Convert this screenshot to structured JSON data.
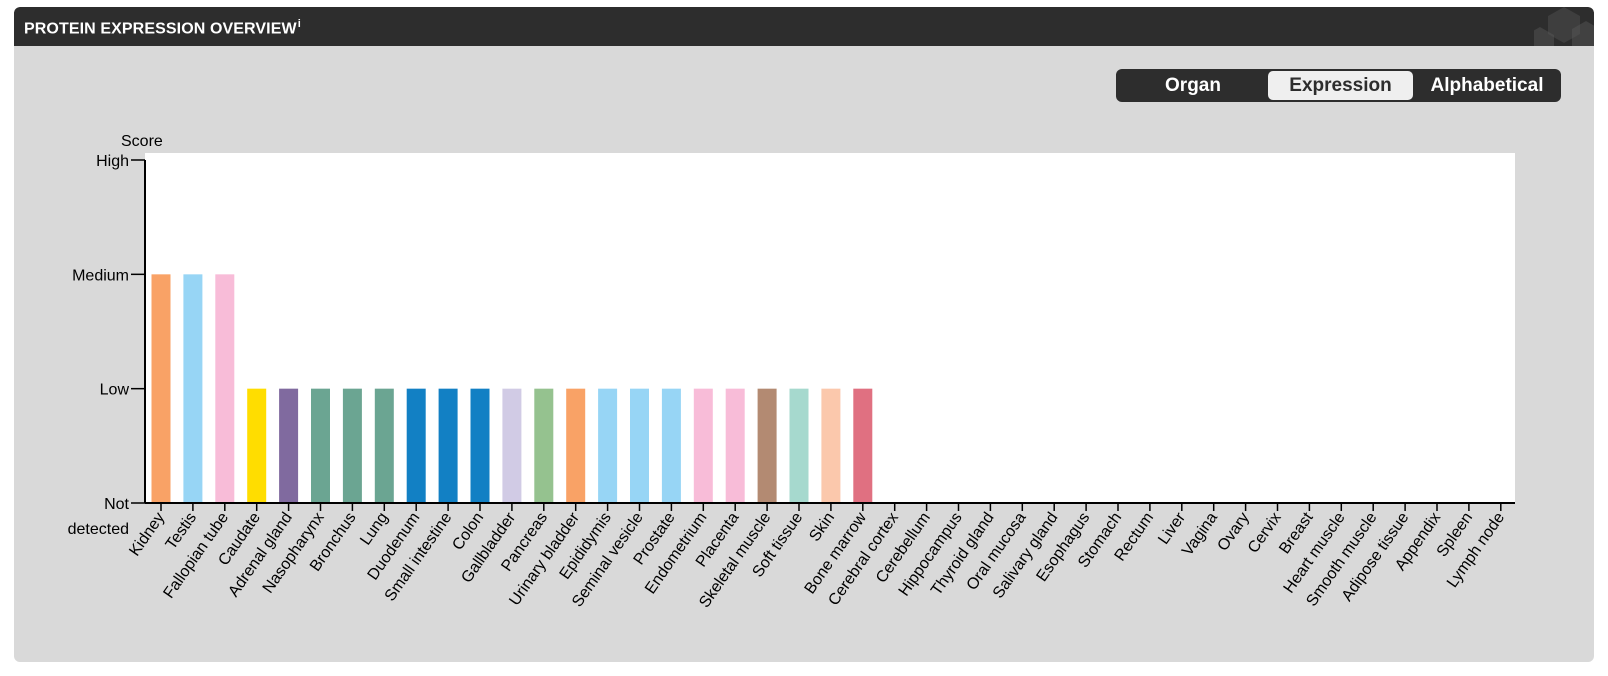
{
  "header": {
    "title": "PROTEIN EXPRESSION OVERVIEW",
    "info_marker": "i"
  },
  "toggle": {
    "options": [
      {
        "label": "Organ",
        "active": false
      },
      {
        "label": "Expression",
        "active": true
      },
      {
        "label": "Alphabetical",
        "active": false
      }
    ]
  },
  "chart_data": {
    "type": "bar",
    "ylabel": "Score",
    "y_levels": [
      "Not detected",
      "Low",
      "Medium",
      "High"
    ],
    "y_tick_lines": {
      "not_detected": [
        "Not",
        "detected"
      ]
    },
    "ylim": [
      0,
      3
    ],
    "grid": false,
    "categories": [
      "Kidney",
      "Testis",
      "Fallopian tube",
      "Caudate",
      "Adrenal gland",
      "Nasopharynx",
      "Bronchus",
      "Lung",
      "Duodenum",
      "Small intestine",
      "Colon",
      "Gallbladder",
      "Pancreas",
      "Urinary bladder",
      "Epididymis",
      "Seminal vesicle",
      "Prostate",
      "Endometrium",
      "Placenta",
      "Skeletal muscle",
      "Soft tissue",
      "Skin",
      "Bone marrow",
      "Cerebral cortex",
      "Cerebellum",
      "Hippocampus",
      "Thyroid gland",
      "Oral mucosa",
      "Salivary gland",
      "Esophagus",
      "Stomach",
      "Rectum",
      "Liver",
      "Vagina",
      "Ovary",
      "Cervix",
      "Breast",
      "Heart muscle",
      "Smooth muscle",
      "Adipose tissue",
      "Appendix",
      "Spleen",
      "Lymph node"
    ],
    "values": [
      2,
      2,
      2,
      1,
      1,
      1,
      1,
      1,
      1,
      1,
      1,
      1,
      1,
      1,
      1,
      1,
      1,
      1,
      1,
      1,
      1,
      1,
      1,
      0,
      0,
      0,
      0,
      0,
      0,
      0,
      0,
      0,
      0,
      0,
      0,
      0,
      0,
      0,
      0,
      0,
      0,
      0,
      0
    ],
    "colors": [
      "#f9a266",
      "#97d5f5",
      "#f8bcd8",
      "#ffdd00",
      "#806a9f",
      "#6ba592",
      "#6ba592",
      "#6ba592",
      "#1280c4",
      "#1280c4",
      "#1280c4",
      "#d1cbe5",
      "#95c28f",
      "#f9a266",
      "#97d5f5",
      "#97d5f5",
      "#97d5f5",
      "#f8bcd8",
      "#f8bcd8",
      "#b38a72",
      "#a6d9ce",
      "#fbc8ac",
      "#e07081",
      "#ffdd00",
      "#ffdd00",
      "#ffdd00",
      "#806a9f",
      "#6ba592",
      "#1280c4",
      "#1280c4",
      "#1280c4",
      "#1280c4",
      "#d1cbe5",
      "#f8bcd8",
      "#f8bcd8",
      "#f8bcd8",
      "#f8bcd8",
      "#e07081",
      "#b38a72",
      "#b38a72",
      "#e07081",
      "#e07081",
      "#e07081"
    ]
  }
}
